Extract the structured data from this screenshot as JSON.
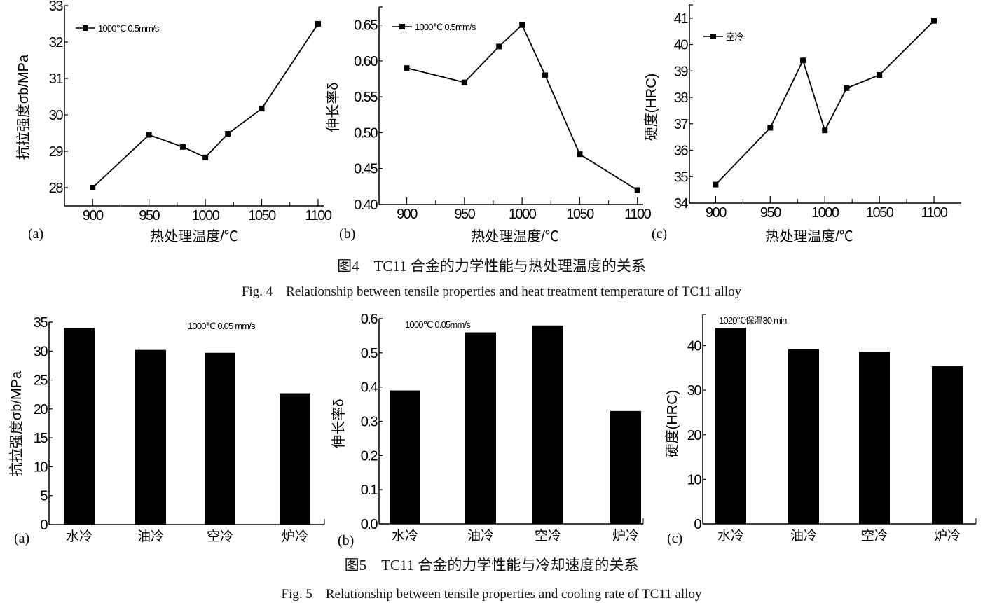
{
  "figure4": {
    "caption_cn": "图4　TC11 合金的力学性能与热处理温度的关系",
    "caption_en": "Fig. 4　Relationship between tensile properties and heat treatment temperature of TC11 alloy"
  },
  "figure5": {
    "caption_cn": "图5　TC11 合金的力学性能与冷却速度的关系",
    "caption_en": "Fig. 5　Relationship between tensile properties and cooling rate of TC11 alloy"
  },
  "chart_data": [
    {
      "panel": "(a)",
      "type": "line",
      "xlabel": "热处理温度/℃",
      "ylabel": "抗拉强度σb/MPa",
      "x": [
        900,
        950,
        980,
        1000,
        1020,
        1050,
        1100
      ],
      "xticks": [
        900,
        950,
        1000,
        1050,
        1100
      ],
      "yticks": [
        28,
        29,
        30,
        31,
        32,
        33
      ],
      "ylim": [
        27.5,
        33
      ],
      "xlim": [
        875,
        1105
      ],
      "legend": "1000℃ 0.5mm/s",
      "legend_position": "top-left",
      "series": [
        {
          "name": "1000℃ 0.5mm/s",
          "values": [
            28.0,
            29.45,
            29.12,
            28.83,
            29.48,
            30.17,
            32.5
          ]
        }
      ],
      "grid": false
    },
    {
      "panel": "(b)",
      "type": "line",
      "xlabel": "热处理温度/℃",
      "ylabel": "伸长率δ",
      "x": [
        900,
        950,
        980,
        1000,
        1020,
        1050,
        1100
      ],
      "xticks": [
        900,
        950,
        1000,
        1050,
        1100
      ],
      "yticks": [
        "0.40",
        "0.45",
        "0.50",
        "0.55",
        "0.60",
        "0.65"
      ],
      "ylim": [
        0.4,
        0.675
      ],
      "xlim": [
        876,
        1105
      ],
      "legend": "1000℃ 0.5mm/s",
      "legend_position": "top-left",
      "series": [
        {
          "name": "1000℃ 0.5mm/s",
          "values": [
            0.59,
            0.57,
            0.62,
            0.65,
            0.58,
            0.47,
            0.42
          ]
        }
      ],
      "grid": false
    },
    {
      "panel": "(c)",
      "type": "line",
      "xlabel": "热处理温度/℃",
      "ylabel": "硬度(HRC)",
      "x": [
        900,
        950,
        980,
        1000,
        1020,
        1050,
        1100
      ],
      "xticks": [
        900,
        950,
        1000,
        1050,
        1100
      ],
      "yticks": [
        34,
        35,
        36,
        37,
        38,
        39,
        40,
        41
      ],
      "ylim": [
        34,
        41.5
      ],
      "xlim": [
        876,
        1125
      ],
      "legend": "空冷",
      "legend_position": "top-left",
      "series": [
        {
          "name": "空冷",
          "values": [
            34.7,
            36.85,
            39.4,
            36.75,
            38.35,
            38.85,
            40.9
          ]
        }
      ],
      "grid": false
    },
    {
      "panel": "(a)",
      "type": "bar",
      "xlabel": "",
      "ylabel": "抗拉强度σb/MPa",
      "categories": [
        "水冷",
        "油冷",
        "空冷",
        "炉冷"
      ],
      "values": [
        34.0,
        30.2,
        29.7,
        22.7
      ],
      "yticks": [
        0,
        5,
        10,
        15,
        20,
        25,
        30,
        35
      ],
      "ylim": [
        0,
        35
      ],
      "annotation": "1000℃ 0.05 mm/s",
      "grid": false
    },
    {
      "panel": "(b)",
      "type": "bar",
      "xlabel": "",
      "ylabel": "伸长率δ",
      "categories": [
        "水冷",
        "油冷",
        "空冷",
        "炉冷"
      ],
      "values": [
        0.39,
        0.56,
        0.58,
        0.33
      ],
      "yticks": [
        "0.0",
        "0.1",
        "0.2",
        "0.3",
        "0.4",
        "0.5",
        "0.6"
      ],
      "ylim": [
        0,
        0.6
      ],
      "annotation": "1000℃ 0.05mm/s",
      "grid": false
    },
    {
      "panel": "(c)",
      "type": "bar",
      "xlabel": "",
      "ylabel": "硬度(HRC)",
      "categories": [
        "水冷",
        "油冷",
        "空冷",
        "炉冷"
      ],
      "values": [
        44.0,
        39.2,
        38.6,
        35.4
      ],
      "yticks": [
        0,
        10,
        20,
        30,
        40
      ],
      "ylim": [
        0,
        47
      ],
      "annotation": "1020℃保温30 min",
      "grid": false
    }
  ]
}
